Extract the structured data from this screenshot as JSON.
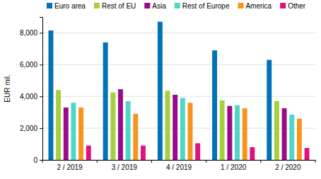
{
  "chart_data": {
    "type": "bar",
    "y_label": "EUR mil.",
    "categories": [
      "2 / 2019",
      "3 / 2019",
      "4 / 2019",
      "1 / 2020",
      "2 / 2020"
    ],
    "series": [
      {
        "name": "Euro area",
        "color": "#0072b5",
        "values": [
          8150,
          7400,
          8700,
          6900,
          6300
        ]
      },
      {
        "name": "Rest of EU",
        "color": "#a6cf3f",
        "values": [
          4400,
          4250,
          4350,
          3750,
          3700
        ]
      },
      {
        "name": "Asia",
        "color": "#9c0a85",
        "values": [
          3300,
          4450,
          4100,
          3400,
          3250
        ]
      },
      {
        "name": "Rest of Europe",
        "color": "#4fd6c8",
        "values": [
          3600,
          3700,
          3900,
          3450,
          2850
        ]
      },
      {
        "name": "America",
        "color": "#f7941d",
        "values": [
          3300,
          2900,
          3600,
          3250,
          2600
        ]
      },
      {
        "name": "Other",
        "color": "#e3117e",
        "values": [
          900,
          900,
          1050,
          800,
          750
        ]
      }
    ],
    "ylim": [
      0,
      9000
    ],
    "yticks": [
      0,
      {
        "value": 2000,
        "label": "2,000"
      },
      {
        "value": 4000,
        "label": "4,000"
      },
      {
        "value": 6000,
        "label": "6,000"
      },
      {
        "value": 8000,
        "label": "8,000"
      }
    ],
    "grid": true,
    "legend": "top"
  }
}
